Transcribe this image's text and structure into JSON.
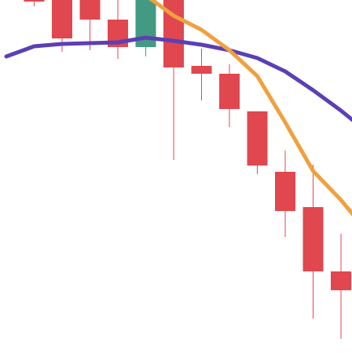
{
  "chart_data": {
    "type": "candlestick",
    "title": "",
    "xlabel": "",
    "ylabel": "",
    "grid": false,
    "legend": "none",
    "ylim": [
      0,
      450
    ],
    "x": [
      1,
      2,
      3,
      4,
      5,
      6,
      7,
      8,
      9,
      10,
      11,
      12,
      13
    ],
    "candles": [
      {
        "x": 1,
        "open": 450,
        "high": 460,
        "low": 442,
        "close": 449
      },
      {
        "x": 2,
        "open": 450,
        "high": 470,
        "low": 384,
        "close": 401
      },
      {
        "x": 3,
        "open": 450,
        "high": 470,
        "low": 386,
        "close": 425
      },
      {
        "x": 4,
        "open": 425,
        "high": 450,
        "low": 375,
        "close": 390
      },
      {
        "x": 5,
        "open": 390,
        "high": 460,
        "low": 378,
        "close": 460
      },
      {
        "x": 6,
        "open": 450,
        "high": 460,
        "low": 246,
        "close": 364
      },
      {
        "x": 7,
        "open": 366,
        "high": 388,
        "low": 322,
        "close": 356
      },
      {
        "x": 8,
        "open": 356,
        "high": 368,
        "low": 288,
        "close": 311
      },
      {
        "x": 9,
        "open": 308,
        "high": 308,
        "low": 228,
        "close": 239
      },
      {
        "x": 10,
        "open": 231,
        "high": 258,
        "low": 148,
        "close": 181
      },
      {
        "x": 11,
        "open": 186,
        "high": 240,
        "low": 44,
        "close": 104
      },
      {
        "x": 12,
        "open": 104,
        "high": 152,
        "low": 18,
        "close": 80
      }
    ],
    "series": [
      {
        "type": "line",
        "color": "#5b3fb5",
        "x": [
          0,
          1,
          2,
          3,
          4,
          5,
          6,
          7,
          8,
          9,
          10,
          11,
          12,
          13
        ],
        "values": [
          378,
          391,
          394,
          395,
          396,
          402,
          398,
          393,
          386,
          376,
          359,
          335,
          309,
          280
        ]
      },
      {
        "type": "line",
        "color": "#f0a040",
        "x": [
          5,
          6,
          7,
          8,
          9,
          10,
          11,
          12,
          13
        ],
        "values": [
          456,
          430,
          412,
          386,
          353,
          294,
          232,
          195,
          152
        ]
      }
    ],
    "colors": {
      "up": "#429a82",
      "down": "#e0474f"
    }
  }
}
